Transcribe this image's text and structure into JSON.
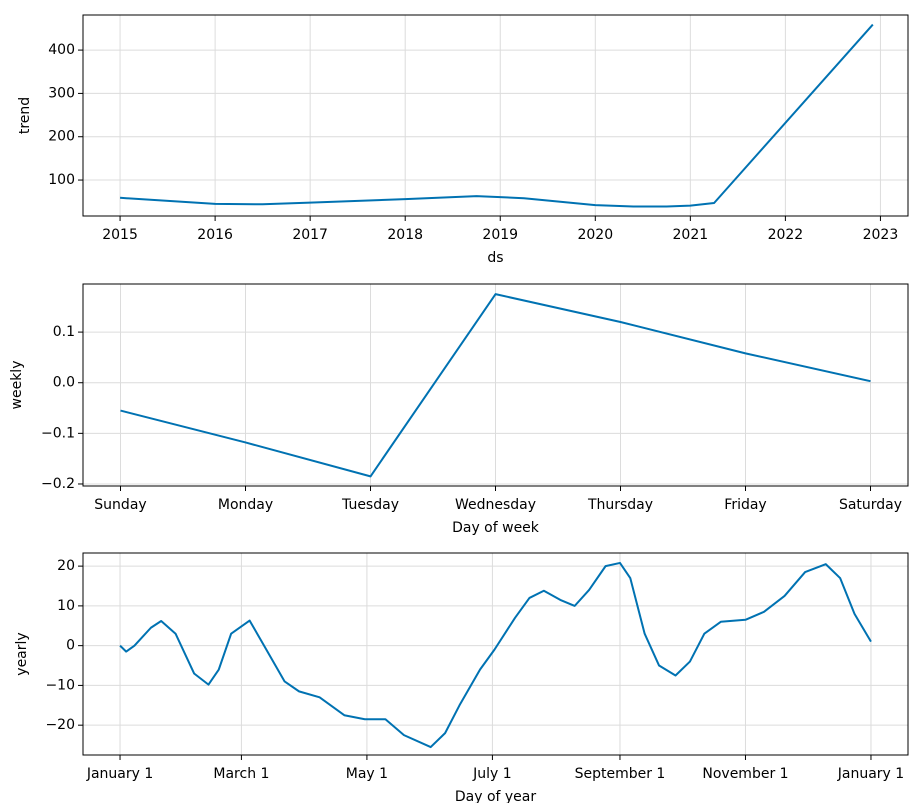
{
  "chart_data": [
    {
      "type": "line",
      "xlabel": "ds",
      "ylabel": "trend",
      "color": "#0072B2",
      "grid": true,
      "x": [
        2015,
        2016,
        2016.5,
        2017,
        2018,
        2018.75,
        2019.25,
        2020,
        2020.4,
        2020.75,
        2021,
        2021.25,
        2022.92
      ],
      "values": [
        59,
        45,
        44,
        48,
        56,
        63,
        58,
        42,
        39,
        39,
        41,
        47,
        459
      ],
      "xlim": [
        2014.61,
        2023.29
      ],
      "xticks": [
        2015,
        2016,
        2017,
        2018,
        2019,
        2020,
        2021,
        2022,
        2023
      ],
      "ylim": [
        17,
        481
      ],
      "yticks": [
        100,
        200,
        300,
        400
      ]
    },
    {
      "type": "line",
      "xlabel": "Day of week",
      "ylabel": "weekly",
      "color": "#0072B2",
      "grid": true,
      "categories": [
        "Sunday",
        "Monday",
        "Tuesday",
        "Wednesday",
        "Thursday",
        "Friday",
        "Saturday"
      ],
      "values": [
        -0.055,
        -0.118,
        -0.185,
        0.175,
        0.12,
        0.058,
        0.003
      ],
      "ylim": [
        -0.204,
        0.195
      ],
      "yticks": [
        {
          "value": -0.2,
          "label": "−0.2"
        },
        {
          "value": -0.1,
          "label": "−0.1"
        },
        {
          "value": 0,
          "label": "0.0"
        },
        0.1
      ]
    },
    {
      "type": "line",
      "xlabel": "Day of year",
      "ylabel": "yearly",
      "color": "#0072B2",
      "grid": true,
      "x": [
        0,
        3,
        7,
        15,
        20,
        27,
        36,
        43,
        48,
        54,
        63,
        70,
        80,
        87,
        97,
        109,
        119,
        129,
        138,
        151,
        158,
        165,
        175,
        182,
        192,
        199,
        206,
        214,
        221,
        228,
        236,
        243,
        248,
        255,
        262,
        270,
        277,
        284,
        292,
        304,
        313,
        323,
        333,
        343,
        350,
        357,
        365
      ],
      "values": [
        0,
        -1.5,
        0,
        4.5,
        6.2,
        3,
        -7,
        -9.8,
        -6,
        3,
        6.3,
        0,
        -9,
        -11.5,
        -13,
        -17.5,
        -18.5,
        -18.5,
        -22.5,
        -25.5,
        -22,
        -15,
        -6,
        -1,
        7,
        12,
        13.8,
        11.5,
        10,
        14,
        20,
        20.8,
        17,
        3,
        -5,
        -7.5,
        -4,
        3,
        6,
        6.5,
        8.5,
        12.5,
        18.5,
        20.5,
        17,
        8,
        1
      ],
      "xlim": [
        -18,
        383
      ],
      "xticks": [
        {
          "value": 0,
          "label": "January 1"
        },
        {
          "value": 59,
          "label": "March 1"
        },
        {
          "value": 120,
          "label": "May 1"
        },
        {
          "value": 181,
          "label": "July 1"
        },
        {
          "value": 243,
          "label": "September 1"
        },
        {
          "value": 304,
          "label": "November 1"
        },
        {
          "value": 365,
          "label": "January 1"
        }
      ],
      "ylim": [
        -27.5,
        23.3
      ],
      "yticks": [
        {
          "value": -20,
          "label": "−20"
        },
        {
          "value": -10,
          "label": "−10"
        },
        0,
        10,
        20
      ]
    }
  ]
}
